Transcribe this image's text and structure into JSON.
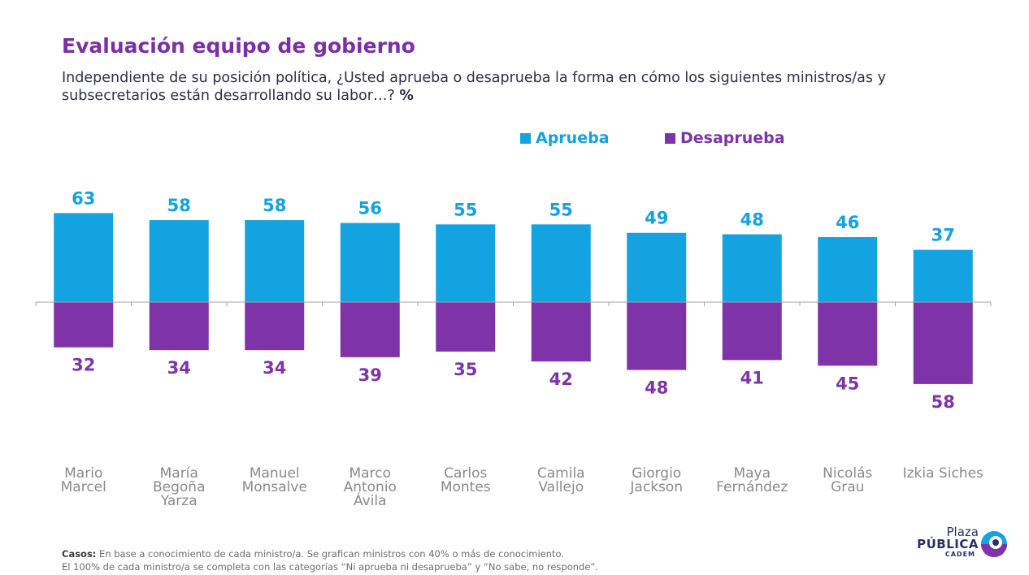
{
  "header": {
    "title": "Evaluación equipo de gobierno",
    "subtitle": "Independiente de su posición política, ¿Usted aprueba o desaprueba la forma en cómo los siguientes ministros/as y subsecretarios están desarrollando su labor…?",
    "subtitle_unit": "%"
  },
  "legend": {
    "approve_label": "Aprueba",
    "disapprove_label": "Desaprueba"
  },
  "colors": {
    "approve": "#13a3e0",
    "disapprove": "#7f33a8",
    "title": "#7b2fa6",
    "category_label": "#8a8a8a"
  },
  "chart_data": {
    "type": "bar",
    "categories": [
      [
        "Mario",
        "Marcel"
      ],
      [
        "María",
        "Begoña",
        "Yarza"
      ],
      [
        "Manuel",
        "Monsalve"
      ],
      [
        "Marco",
        "Antonio",
        "Ávila"
      ],
      [
        "Carlos",
        "Montes"
      ],
      [
        "Camila",
        "Vallejo"
      ],
      [
        "Giorgio",
        "Jackson"
      ],
      [
        "Maya",
        "Fernández"
      ],
      [
        "Nicolás",
        "Grau"
      ],
      [
        "Izkia Siches"
      ]
    ],
    "series": [
      {
        "name": "Aprueba",
        "values": [
          63,
          58,
          58,
          56,
          55,
          55,
          49,
          48,
          46,
          37
        ]
      },
      {
        "name": "Desaprueba",
        "values": [
          32,
          34,
          34,
          39,
          35,
          42,
          48,
          41,
          45,
          58
        ]
      }
    ],
    "layout_note": "diverging: Aprueba above baseline, Desaprueba below",
    "ylim": [
      -58,
      63
    ]
  },
  "footer": {
    "cases_label": "Casos:",
    "cases_text": "En base a conocimiento de cada ministro/a. Se grafican ministros con 40% o más de conocimiento.",
    "note_text": "El 100% de cada ministro/a se completa con las categorías “Ni aprueba ni desaprueba” y “No sabe, no responde”."
  },
  "logo": {
    "line1": "Plaza",
    "line2": "PÚBLICA",
    "line3": "CADEM"
  }
}
